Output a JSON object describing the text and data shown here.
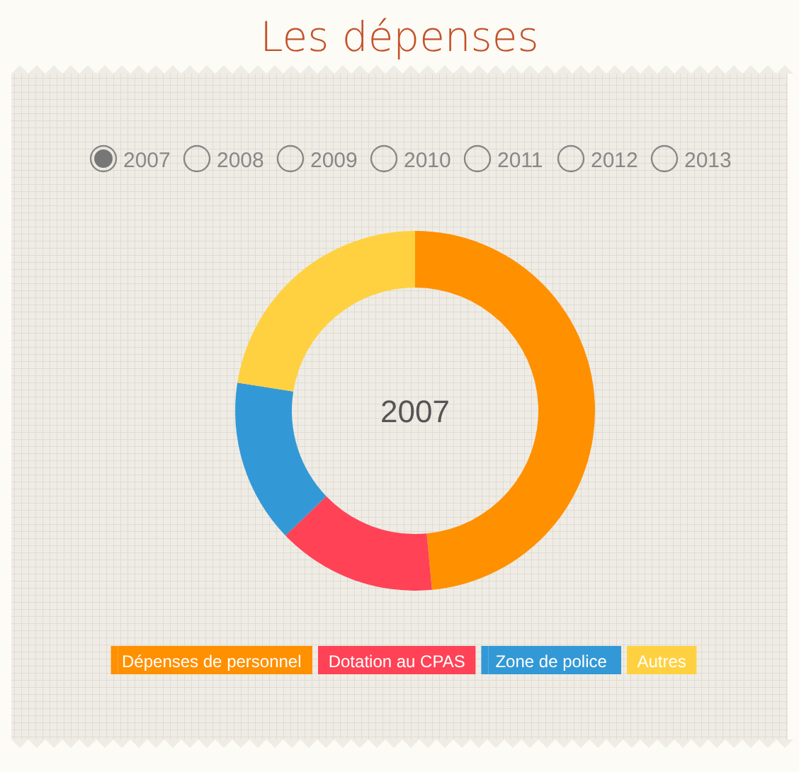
{
  "chart_data": {
    "type": "donut",
    "title": "Les dépenses",
    "categories": [
      "Dépenses de personnel",
      "Dotation au CPAS",
      "Zone de police",
      "Autres"
    ],
    "values": [
      48.5,
      14.3,
      14.7,
      22.5
    ],
    "colors": [
      "#ff9000",
      "#ff4255",
      "#3399d6",
      "#ffd141"
    ],
    "legend": "bottom",
    "annotations": [
      "2007",
      "2007",
      "2008",
      "2009",
      "2010",
      "2011",
      "2012",
      "2013"
    ]
  }
}
